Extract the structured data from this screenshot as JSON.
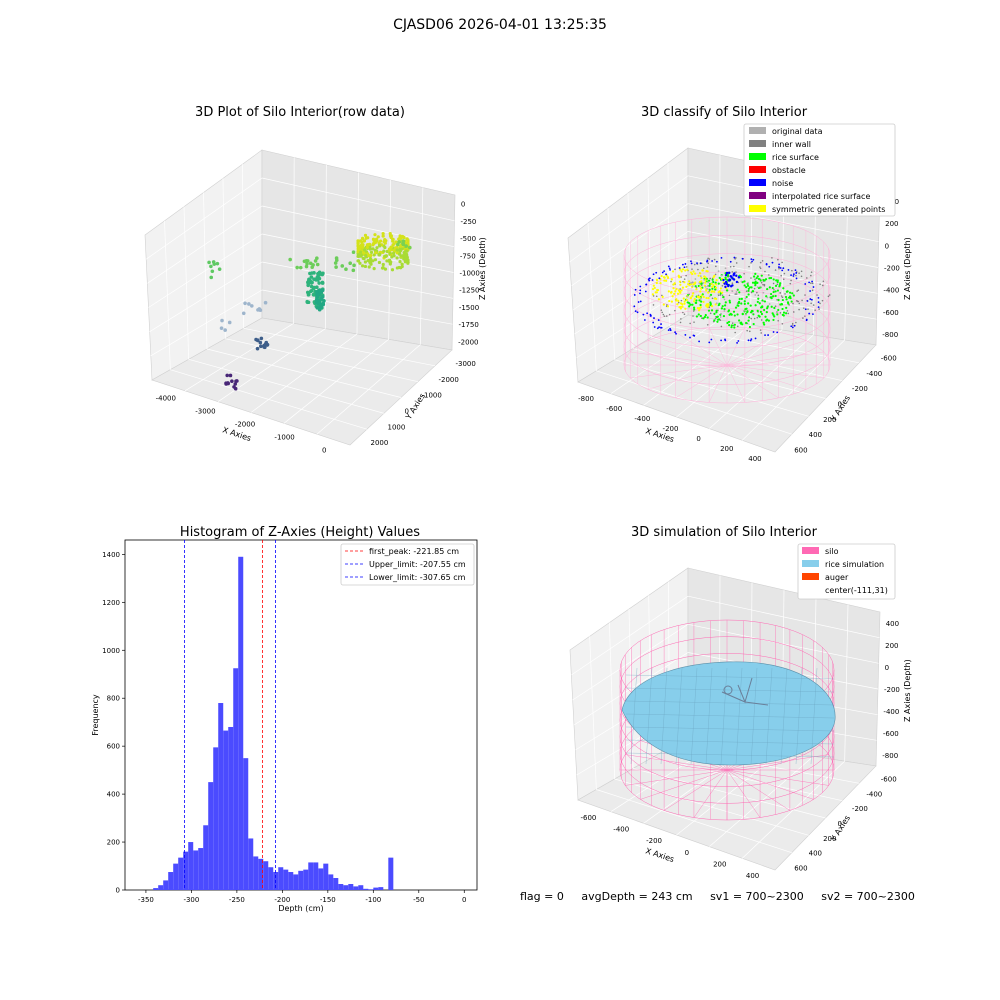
{
  "suptitle": "CJASD06 2026-04-01 13:25:35",
  "chart_data": [
    {
      "type": "scatter",
      "projection": "3d",
      "title": "3D Plot of Silo Interior(row data)",
      "xlabel": "X Axies",
      "ylabel": "Y Axies",
      "zlabel": "Z Axies (Depth)",
      "x_ticks": [
        -4000,
        -3000,
        -2000,
        -1000,
        0
      ],
      "y_ticks": [
        2000,
        1000,
        0,
        -1000,
        -2000,
        -3000
      ],
      "z_ticks": [
        0,
        -250,
        -500,
        -750,
        -1000,
        -1250,
        -1500,
        -1750,
        -2000
      ],
      "colormap": "viridis"
    },
    {
      "type": "scatter",
      "projection": "3d",
      "title": "3D classify of Silo Interior",
      "xlabel": "X Axies",
      "ylabel": "Y Axies",
      "zlabel": "Z Axies (Depth)",
      "x_ticks": [
        -800,
        -600,
        -400,
        -200,
        0,
        200,
        400
      ],
      "y_ticks": [
        600,
        400,
        200,
        0,
        -200,
        -400,
        -600
      ],
      "z_ticks": [
        400,
        200,
        0,
        -200,
        -400,
        -600,
        -800
      ],
      "legend_position": "top-right",
      "legend": [
        {
          "name": "original data",
          "color": "#b0b0b0"
        },
        {
          "name": "inner wall",
          "color": "#808080"
        },
        {
          "name": "rice surface",
          "color": "#00ff00"
        },
        {
          "name": "obstacle",
          "color": "#ff0000"
        },
        {
          "name": "noise",
          "color": "#0000ff"
        },
        {
          "name": "interpolated rice surface",
          "color": "#800080"
        },
        {
          "name": "symmetric generated points",
          "color": "#ffff00"
        }
      ]
    },
    {
      "type": "bar",
      "title": "Histogram of Z-Axies (Height) Values",
      "xlabel": "Depth (cm)",
      "ylabel": "Frequency",
      "xlim": [
        -373,
        14
      ],
      "ylim": [
        0,
        1460
      ],
      "x_ticks": [
        -350,
        -300,
        -250,
        -200,
        -150,
        -100,
        -50,
        0
      ],
      "y_ticks": [
        0,
        200,
        400,
        600,
        800,
        1000,
        1200,
        1400
      ],
      "bar_color": "#4b4bff",
      "bin_start": -342,
      "bin_width": 5.5,
      "values": [
        8,
        20,
        40,
        75,
        110,
        135,
        160,
        200,
        165,
        175,
        270,
        450,
        595,
        780,
        665,
        680,
        925,
        1390,
        550,
        215,
        140,
        130,
        120,
        95,
        75,
        95,
        85,
        75,
        65,
        80,
        85,
        115,
        115,
        90,
        110,
        65,
        50,
        25,
        20,
        25,
        15,
        20,
        5,
        3,
        10,
        12,
        0,
        135
      ],
      "vlines": [
        {
          "label": "first_peak: -221.85 cm",
          "x": -221.85,
          "color": "#ff0000"
        },
        {
          "label": "Upper_limit: -207.55 cm",
          "x": -207.55,
          "color": "#0000ff"
        },
        {
          "label": "Lower_limit: -307.65 cm",
          "x": -307.65,
          "color": "#0000ff"
        }
      ],
      "legend_position": "top-right"
    },
    {
      "type": "surface",
      "projection": "3d",
      "title": "3D simulation of Silo Interior",
      "xlabel": "X Axies",
      "ylabel": "Y Axies",
      "zlabel": "Z Axies (Depth)",
      "x_ticks": [
        -600,
        -400,
        -200,
        0,
        200,
        400
      ],
      "y_ticks": [
        600,
        400,
        200,
        0,
        -200,
        -400,
        -600
      ],
      "z_ticks": [
        400,
        200,
        0,
        -200,
        -400,
        -600,
        -800
      ],
      "legend_position": "top-right",
      "legend": [
        {
          "name": "silo",
          "color": "#ff69b4"
        },
        {
          "name": "rice simulation",
          "color": "#87ceeb"
        },
        {
          "name": "auger",
          "color": "#ff4500"
        },
        {
          "name": "center(-111,31)",
          "color": ""
        }
      ]
    }
  ],
  "status": {
    "flag": "flag = 0",
    "avg_depth": "avgDepth = 243 cm",
    "sv1": "sv1 = 700~2300",
    "sv2": "sv2 = 700~2300"
  }
}
